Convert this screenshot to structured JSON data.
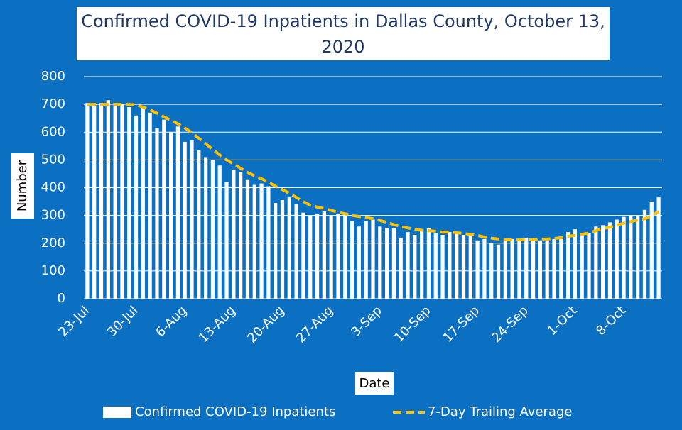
{
  "chart_data": {
    "type": "bar",
    "title": "Confirmed COVID-19 Inpatients in Dallas County, October 13, 2020",
    "x_label": "Date",
    "y_label": "Number",
    "categories": [
      "23-Jul",
      null,
      null,
      null,
      null,
      null,
      null,
      "30-Jul",
      null,
      null,
      null,
      null,
      null,
      null,
      "6-Aug",
      null,
      null,
      null,
      null,
      null,
      null,
      "13-Aug",
      null,
      null,
      null,
      null,
      null,
      null,
      "20-Aug",
      null,
      null,
      null,
      null,
      null,
      null,
      "27-Aug",
      null,
      null,
      null,
      null,
      null,
      null,
      "3-Sep",
      null,
      null,
      null,
      null,
      null,
      null,
      "10-Sep",
      null,
      null,
      null,
      null,
      null,
      null,
      "17-Sep",
      null,
      null,
      null,
      null,
      null,
      null,
      "24-Sep",
      null,
      null,
      null,
      null,
      null,
      null,
      "1-Oct",
      null,
      null,
      null,
      null,
      null,
      null,
      "8-Oct",
      null,
      null,
      null,
      null,
      null
    ],
    "series": [
      {
        "name": "Confirmed COVID-19 Inpatients",
        "type": "bar",
        "color": "#ffffff",
        "values": [
          705,
          700,
          705,
          715,
          700,
          700,
          690,
          660,
          690,
          670,
          615,
          645,
          600,
          620,
          565,
          570,
          535,
          510,
          500,
          480,
          420,
          465,
          455,
          430,
          410,
          415,
          405,
          345,
          355,
          365,
          340,
          310,
          300,
          305,
          315,
          300,
          305,
          310,
          280,
          260,
          280,
          285,
          260,
          255,
          255,
          220,
          240,
          230,
          250,
          255,
          235,
          230,
          240,
          235,
          230,
          225,
          210,
          215,
          200,
          195,
          210,
          215,
          210,
          220,
          215,
          210,
          210,
          215,
          215,
          240,
          250,
          235,
          235,
          260,
          265,
          275,
          285,
          295,
          300,
          300,
          320,
          350,
          365
        ]
      },
      {
        "name": "7-Day Trailing Average",
        "type": "line",
        "color": "#ffc000",
        "values": [
          700,
          700,
          700,
          700,
          700,
          700,
          700,
          698,
          690,
          680,
          668,
          655,
          643,
          630,
          615,
          598,
          578,
          558,
          538,
          518,
          500,
          485,
          470,
          455,
          443,
          432,
          420,
          405,
          393,
          380,
          365,
          350,
          337,
          330,
          325,
          318,
          312,
          306,
          300,
          296,
          293,
          288,
          282,
          275,
          267,
          260,
          255,
          250,
          247,
          245,
          243,
          240,
          240,
          238,
          235,
          232,
          228,
          222,
          218,
          215,
          213,
          212,
          212,
          213,
          213,
          215,
          215,
          217,
          220,
          225,
          228,
          232,
          237,
          245,
          252,
          258,
          265,
          272,
          278,
          283,
          288,
          298,
          315
        ]
      }
    ],
    "ylim": [
      0,
      800
    ],
    "yticks": [
      0,
      100,
      200,
      300,
      400,
      500,
      600,
      700,
      800
    ],
    "grid": true
  }
}
